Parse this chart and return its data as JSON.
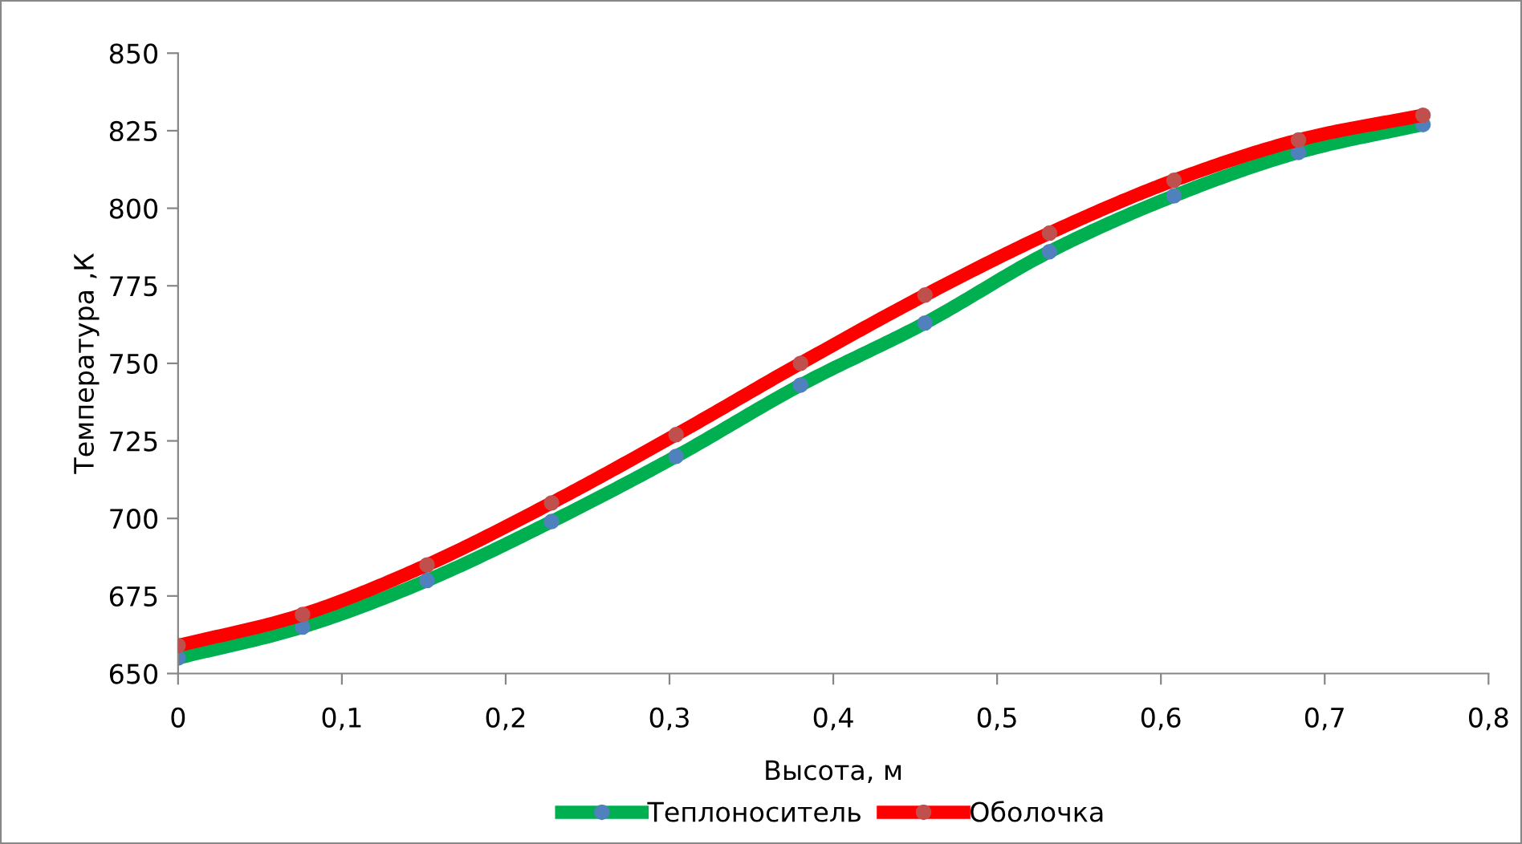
{
  "chart_data": {
    "type": "line",
    "xlabel": "Высота, м",
    "ylabel": "Температура ,К",
    "x": [
      0,
      0.076,
      0.152,
      0.228,
      0.304,
      0.38,
      0.456,
      0.532,
      0.608,
      0.684,
      0.76
    ],
    "series": [
      {
        "name": "Теплоноситель",
        "color": "#00b050",
        "values": [
          655,
          665,
          680,
          699,
          720,
          743,
          763,
          786,
          804,
          818,
          827
        ]
      },
      {
        "name": "Оболочка",
        "color": "#ff0000",
        "values": [
          659,
          669,
          685,
          705,
          727,
          750,
          772,
          792,
          809,
          822,
          830
        ]
      }
    ],
    "xlim": [
      0,
      0.8
    ],
    "ylim": [
      650,
      850
    ],
    "xticks": [
      0,
      {
        "value": 0.1,
        "label": "0,1"
      },
      {
        "value": 0.2,
        "label": "0,2"
      },
      {
        "value": 0.3,
        "label": "0,3"
      },
      {
        "value": 0.4,
        "label": "0,4"
      },
      {
        "value": 0.5,
        "label": "0,5"
      },
      {
        "value": 0.6,
        "label": "0,6"
      },
      {
        "value": 0.7,
        "label": "0,7"
      },
      {
        "value": 0.8,
        "label": "0,8"
      }
    ],
    "yticks": [
      650,
      675,
      700,
      725,
      750,
      775,
      800,
      825,
      850
    ],
    "grid": false,
    "legend": "bottom",
    "marker": "circle",
    "line_style": "solid"
  }
}
